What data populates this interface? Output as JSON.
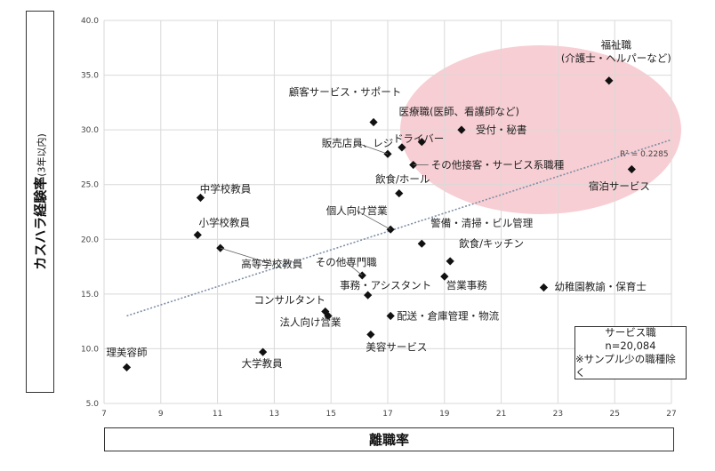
{
  "chart_data": {
    "type": "scatter",
    "title": "",
    "xlabel": "離職率",
    "ylabel": "カスハラ経験率",
    "ylabel_note": "(3年以内)",
    "xlim": [
      7,
      27
    ],
    "ylim": [
      5.0,
      40.0
    ],
    "xticks": [
      "7",
      "9",
      "11",
      "13",
      "15",
      "17",
      "19",
      "21",
      "23",
      "25",
      "27"
    ],
    "yticks": [
      "5.0",
      "10.0",
      "15.0",
      "20.0",
      "25.0",
      "30.0",
      "35.0",
      "40.0"
    ],
    "grid": true,
    "points": [
      {
        "label": "福祉職",
        "sublabel": "(介護士・ヘルパーなど)",
        "x": 24.8,
        "y": 34.5
      },
      {
        "label": "顧客サービス・サポート",
        "x": 16.5,
        "y": 30.7
      },
      {
        "label": "医療職(医師、看護師など)",
        "x": 18.2,
        "y": 28.9
      },
      {
        "label": "受付・秘書",
        "x": 19.6,
        "y": 30.0
      },
      {
        "label": "ドライバー",
        "x": 17.5,
        "y": 28.4
      },
      {
        "label": "販売店員、レジ",
        "x": 17.0,
        "y": 27.8
      },
      {
        "label": "その他接客・サービス系職種",
        "x": 17.9,
        "y": 26.8
      },
      {
        "label": "宿泊サービス",
        "x": 25.6,
        "y": 26.4
      },
      {
        "label": "飲食/ホール",
        "x": 17.4,
        "y": 24.2
      },
      {
        "label": "中学校教員",
        "x": 10.4,
        "y": 23.8
      },
      {
        "label": "個人向け営業",
        "x": 17.1,
        "y": 20.9
      },
      {
        "label": "警備・清掃・ビル管理",
        "x": 18.2,
        "y": 19.6
      },
      {
        "label": "小学校教員",
        "x": 10.3,
        "y": 20.4
      },
      {
        "label": "高等学校教員",
        "x": 11.1,
        "y": 19.2
      },
      {
        "label": "飲食/キッチン",
        "x": 19.2,
        "y": 18.0
      },
      {
        "label": "その他専門職",
        "x": 16.1,
        "y": 16.7
      },
      {
        "label": "営業事務",
        "x": 19.0,
        "y": 16.6
      },
      {
        "label": "幼稚園教諭・保育士",
        "x": 22.5,
        "y": 15.6
      },
      {
        "label": "事務・アシスタント",
        "x": 16.3,
        "y": 14.9
      },
      {
        "label": "コンサルタント",
        "x": 14.8,
        "y": 13.4
      },
      {
        "label": "法人向け営業",
        "x": 14.9,
        "y": 13.0
      },
      {
        "label": "配送・倉庫管理・物流",
        "x": 17.1,
        "y": 13.0
      },
      {
        "label": "美容サービス",
        "x": 16.4,
        "y": 11.3
      },
      {
        "label": "大学教員",
        "x": 12.6,
        "y": 9.7
      },
      {
        "label": "理美容師",
        "x": 7.8,
        "y": 8.3
      }
    ],
    "trendline": {
      "x": [
        7.8,
        27
      ],
      "y": [
        13.0,
        29.1
      ],
      "label": "R² = 0.2285"
    },
    "annotation_box": {
      "lines": [
        "サービス職",
        "n=20,084",
        "※サンプル少の職種除く"
      ]
    },
    "colors": {
      "marker": "#111111",
      "trendline": "#7f8fa6",
      "highlight": "#f4b9c0",
      "grid": "#d9d9d9"
    }
  }
}
